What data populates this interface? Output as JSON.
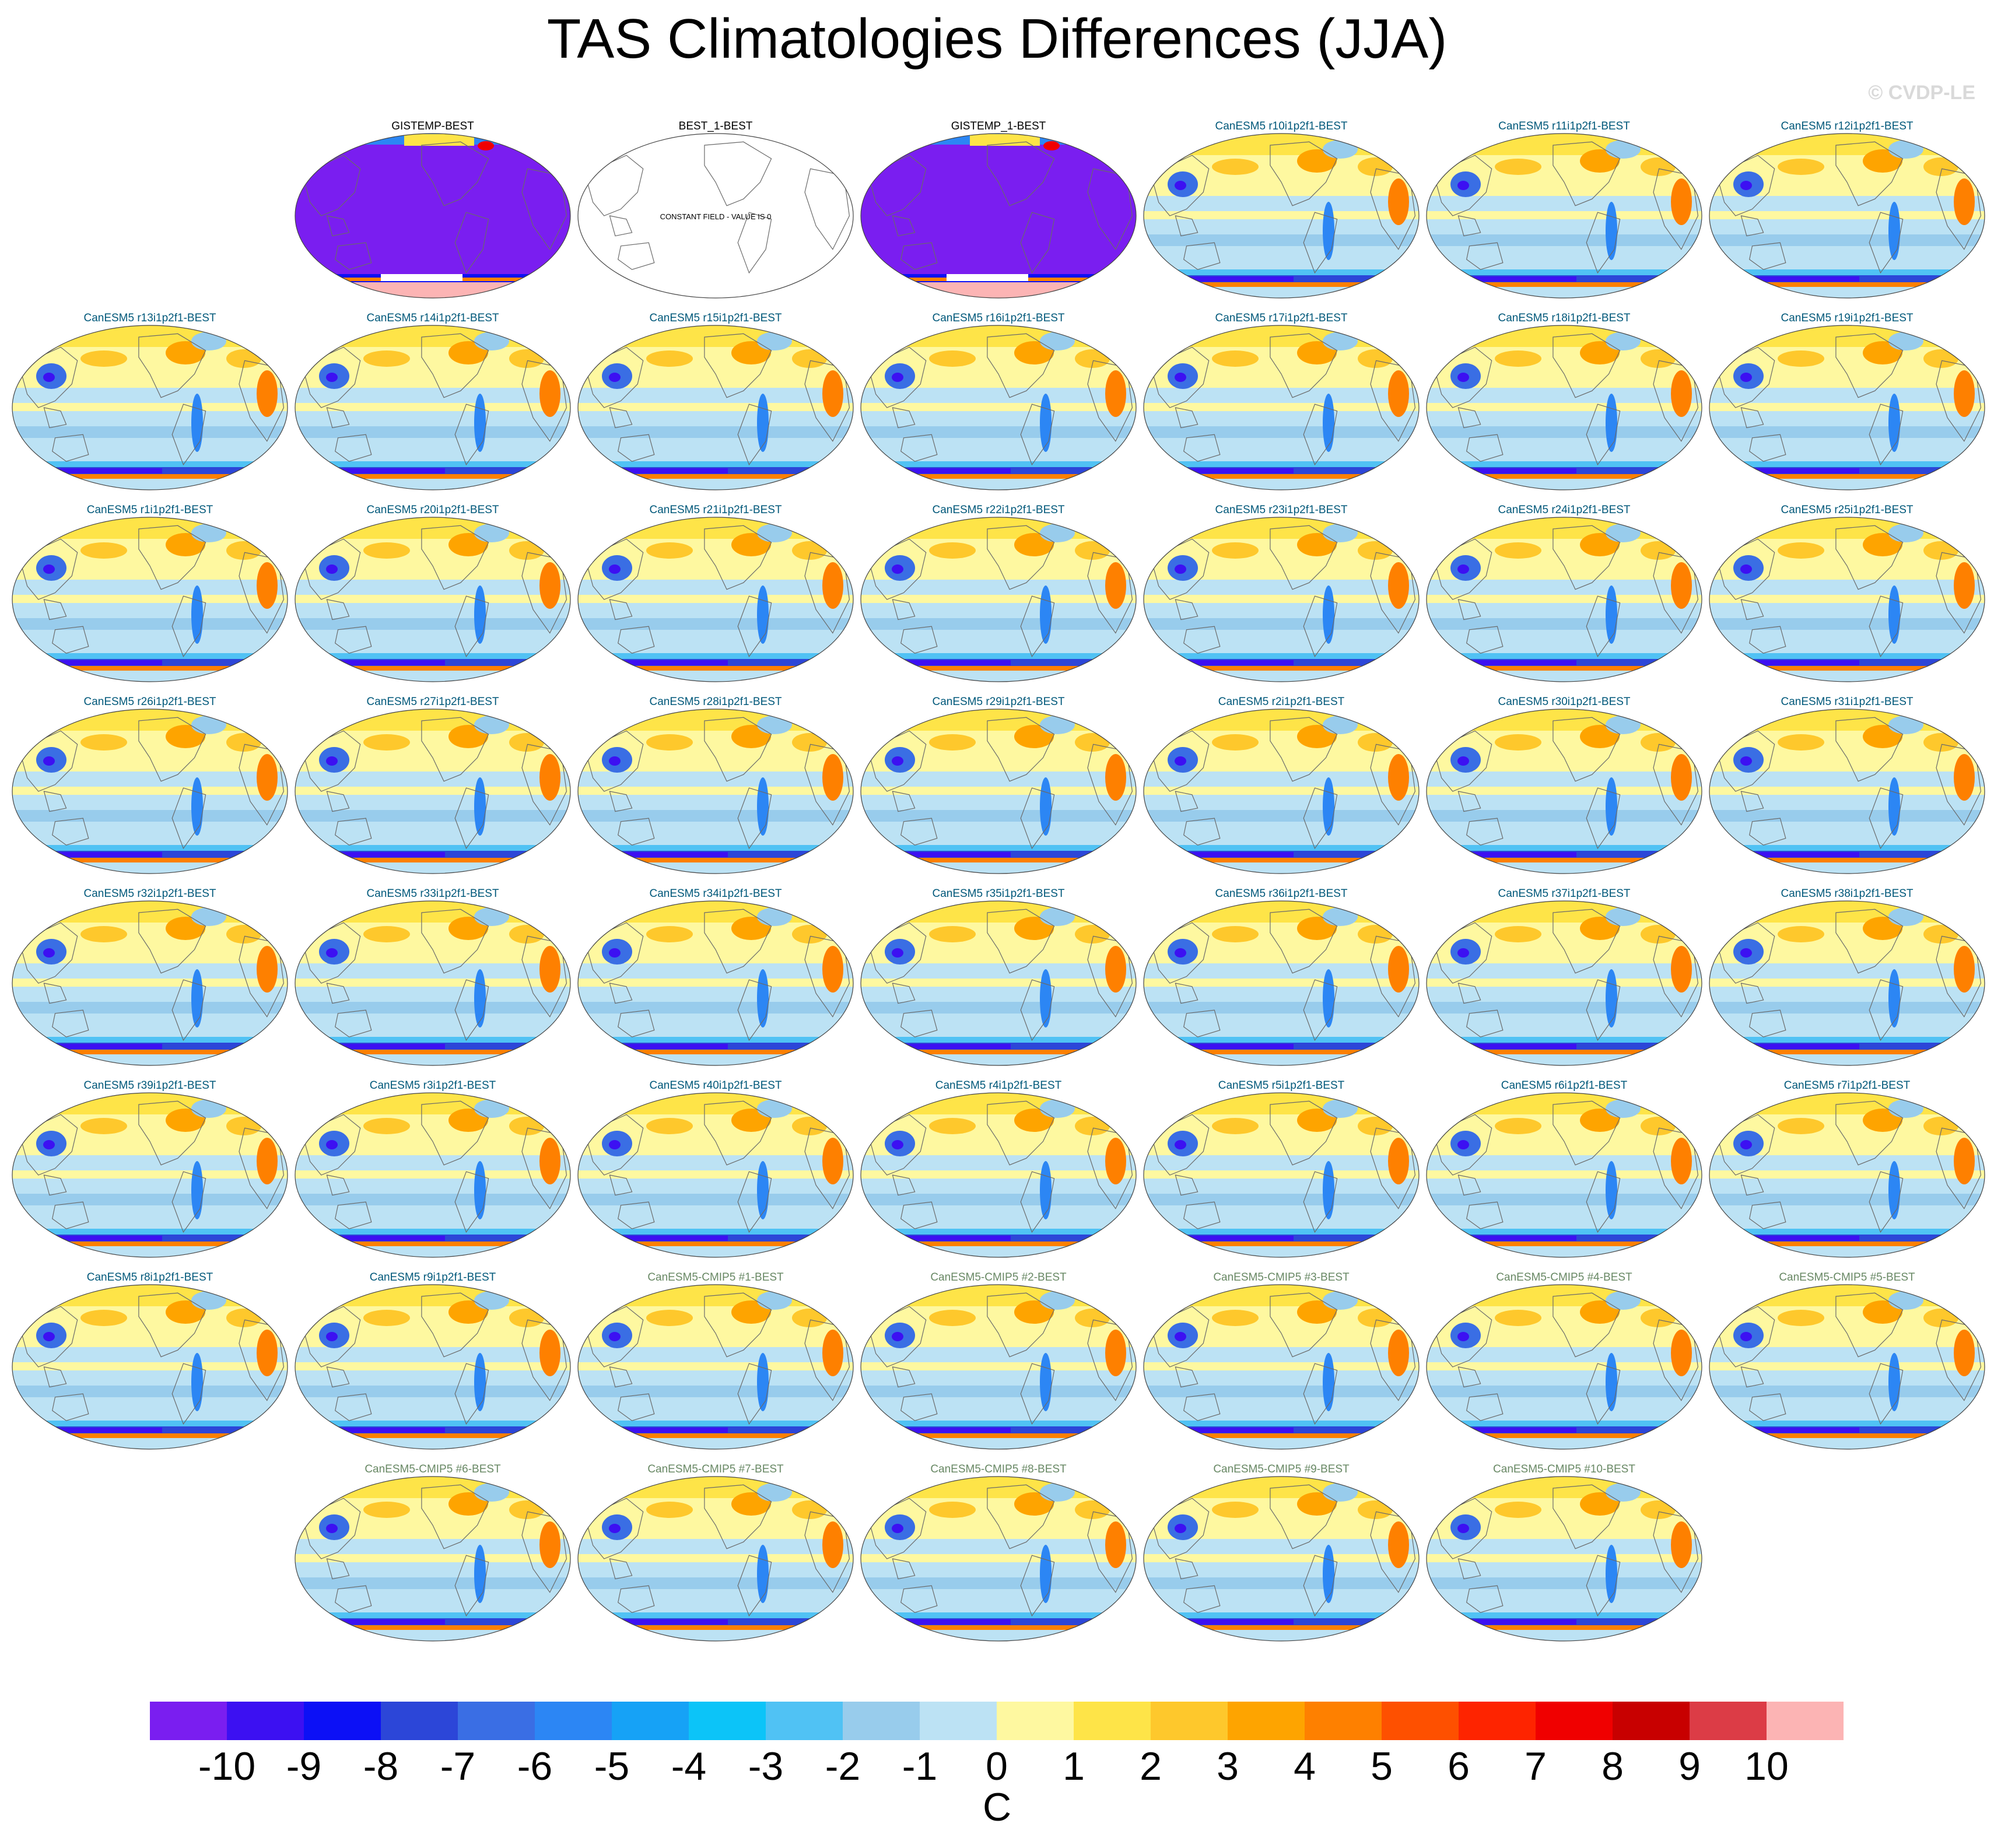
{
  "title": "TAS Climatologies Differences (JJA)",
  "watermark": "© CVDP-LE",
  "chart_data": {
    "type": "heatmap",
    "description_variable": "TAS difference vs BEST, JJA",
    "panels": [
      {
        "label": "GISTEMP-BEST",
        "kind": "obs",
        "fill": "#7a1ef0"
      },
      {
        "label": "BEST_1-BEST",
        "kind": "constant",
        "note": "CONSTANT FIELD - VALUE IS 0"
      },
      {
        "label": "GISTEMP_1-BEST",
        "kind": "obs",
        "fill": "#7a1ef0"
      },
      {
        "label": "CanESM5 r10i1p2f1-BEST",
        "kind": "model"
      },
      {
        "label": "CanESM5 r11i1p2f1-BEST",
        "kind": "model"
      },
      {
        "label": "CanESM5 r12i1p2f1-BEST",
        "kind": "model"
      },
      {
        "label": "CanESM5 r13i1p2f1-BEST",
        "kind": "model"
      },
      {
        "label": "CanESM5 r14i1p2f1-BEST",
        "kind": "model"
      },
      {
        "label": "CanESM5 r15i1p2f1-BEST",
        "kind": "model"
      },
      {
        "label": "CanESM5 r16i1p2f1-BEST",
        "kind": "model"
      },
      {
        "label": "CanESM5 r17i1p2f1-BEST",
        "kind": "model"
      },
      {
        "label": "CanESM5 r18i1p2f1-BEST",
        "kind": "model"
      },
      {
        "label": "CanESM5 r19i1p2f1-BEST",
        "kind": "model"
      },
      {
        "label": "CanESM5 r1i1p2f1-BEST",
        "kind": "model"
      },
      {
        "label": "CanESM5 r20i1p2f1-BEST",
        "kind": "model"
      },
      {
        "label": "CanESM5 r21i1p2f1-BEST",
        "kind": "model"
      },
      {
        "label": "CanESM5 r22i1p2f1-BEST",
        "kind": "model"
      },
      {
        "label": "CanESM5 r23i1p2f1-BEST",
        "kind": "model"
      },
      {
        "label": "CanESM5 r24i1p2f1-BEST",
        "kind": "model"
      },
      {
        "label": "CanESM5 r25i1p2f1-BEST",
        "kind": "model"
      },
      {
        "label": "CanESM5 r26i1p2f1-BEST",
        "kind": "model"
      },
      {
        "label": "CanESM5 r27i1p2f1-BEST",
        "kind": "model"
      },
      {
        "label": "CanESM5 r28i1p2f1-BEST",
        "kind": "model"
      },
      {
        "label": "CanESM5 r29i1p2f1-BEST",
        "kind": "model"
      },
      {
        "label": "CanESM5 r2i1p2f1-BEST",
        "kind": "model"
      },
      {
        "label": "CanESM5 r30i1p2f1-BEST",
        "kind": "model"
      },
      {
        "label": "CanESM5 r31i1p2f1-BEST",
        "kind": "model"
      },
      {
        "label": "CanESM5 r32i1p2f1-BEST",
        "kind": "model"
      },
      {
        "label": "CanESM5 r33i1p2f1-BEST",
        "kind": "model"
      },
      {
        "label": "CanESM5 r34i1p2f1-BEST",
        "kind": "model"
      },
      {
        "label": "CanESM5 r35i1p2f1-BEST",
        "kind": "model"
      },
      {
        "label": "CanESM5 r36i1p2f1-BEST",
        "kind": "model"
      },
      {
        "label": "CanESM5 r37i1p2f1-BEST",
        "kind": "model"
      },
      {
        "label": "CanESM5 r38i1p2f1-BEST",
        "kind": "model"
      },
      {
        "label": "CanESM5 r39i1p2f1-BEST",
        "kind": "model"
      },
      {
        "label": "CanESM5 r3i1p2f1-BEST",
        "kind": "model"
      },
      {
        "label": "CanESM5 r40i1p2f1-BEST",
        "kind": "model"
      },
      {
        "label": "CanESM5 r4i1p2f1-BEST",
        "kind": "model"
      },
      {
        "label": "CanESM5 r5i1p2f1-BEST",
        "kind": "model"
      },
      {
        "label": "CanESM5 r6i1p2f1-BEST",
        "kind": "model"
      },
      {
        "label": "CanESM5 r7i1p2f1-BEST",
        "kind": "model"
      },
      {
        "label": "CanESM5 r8i1p2f1-BEST",
        "kind": "model"
      },
      {
        "label": "CanESM5 r9i1p2f1-BEST",
        "kind": "model"
      },
      {
        "label": "CanESM5-CMIP5 #1-BEST",
        "kind": "cmip5"
      },
      {
        "label": "CanESM5-CMIP5 #2-BEST",
        "kind": "cmip5"
      },
      {
        "label": "CanESM5-CMIP5 #3-BEST",
        "kind": "cmip5"
      },
      {
        "label": "CanESM5-CMIP5 #4-BEST",
        "kind": "cmip5"
      },
      {
        "label": "CanESM5-CMIP5 #5-BEST",
        "kind": "cmip5"
      },
      {
        "label": "CanESM5-CMIP5 #6-BEST",
        "kind": "cmip5"
      },
      {
        "label": "CanESM5-CMIP5 #7-BEST",
        "kind": "cmip5"
      },
      {
        "label": "CanESM5-CMIP5 #8-BEST",
        "kind": "cmip5"
      },
      {
        "label": "CanESM5-CMIP5 #9-BEST",
        "kind": "cmip5"
      },
      {
        "label": "CanESM5-CMIP5 #10-BEST",
        "kind": "cmip5"
      }
    ],
    "colorbar": {
      "unit": "C",
      "ticks": [
        "-10",
        "-9",
        "-8",
        "-7",
        "-6",
        "-5",
        "-4",
        "-3",
        "-2",
        "-1",
        "0",
        "1",
        "2",
        "3",
        "4",
        "5",
        "6",
        "7",
        "8",
        "9",
        "10"
      ],
      "colors": [
        "#7a1ef0",
        "#3c10f2",
        "#0c10f6",
        "#2c46d8",
        "#3a6ee4",
        "#2c86f4",
        "#16a2f6",
        "#0cc4f8",
        "#50c2f4",
        "#98ccec",
        "#bce2f4",
        "#fef8a0",
        "#fee448",
        "#fec82c",
        "#fea400",
        "#fe8000",
        "#fe5000",
        "#fe2400",
        "#f00000",
        "#c80000",
        "#dc3c46",
        "#fcb4b4"
      ],
      "range": [
        -10,
        10
      ]
    },
    "label_colors": {
      "obs": "#000000",
      "constant": "#000000",
      "model": "#00587a",
      "cmip5": "#688864"
    }
  }
}
